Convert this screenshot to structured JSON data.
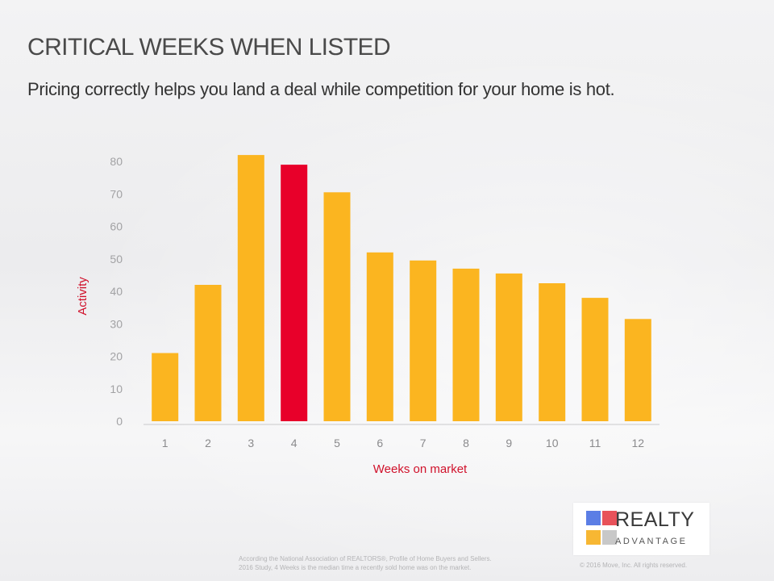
{
  "slide": {
    "title": "CRITICAL WEEKS WHEN LISTED",
    "subtitle": "Pricing correctly helps you land a deal while competition for your home is hot.",
    "footnote_line1": "According the National Association of REALTORS®, Profile of Home Buyers and Sellers.",
    "footnote_line2": "2016 Study, 4 Weeks is the median time a recently sold home was on the market.",
    "copyright": "© 2016 Move, Inc.  All rights reserved."
  },
  "logo": {
    "word1": "REALTY",
    "word2": "ADVANTAGE",
    "colors": [
      "#5b7ee5",
      "#e8525a",
      "#f7b733",
      "#c8c8c8"
    ]
  },
  "chart_data": {
    "type": "bar",
    "title": "",
    "xlabel": "Weeks on market",
    "ylabel": "Activity",
    "categories": [
      "1",
      "2",
      "3",
      "4",
      "5",
      "6",
      "7",
      "8",
      "9",
      "10",
      "11",
      "12"
    ],
    "values": [
      21,
      42,
      82,
      79,
      70.5,
      52,
      49.5,
      47,
      45.5,
      42.5,
      38,
      31.5
    ],
    "highlight_index": 3,
    "ylim": [
      0,
      85
    ],
    "yticks": [
      0,
      10,
      20,
      30,
      40,
      50,
      60,
      70,
      80
    ],
    "grid": false,
    "legend": "none",
    "bar_color": "#fbb520",
    "highlight_color": "#e8002a",
    "label_color": "#d0112b"
  }
}
